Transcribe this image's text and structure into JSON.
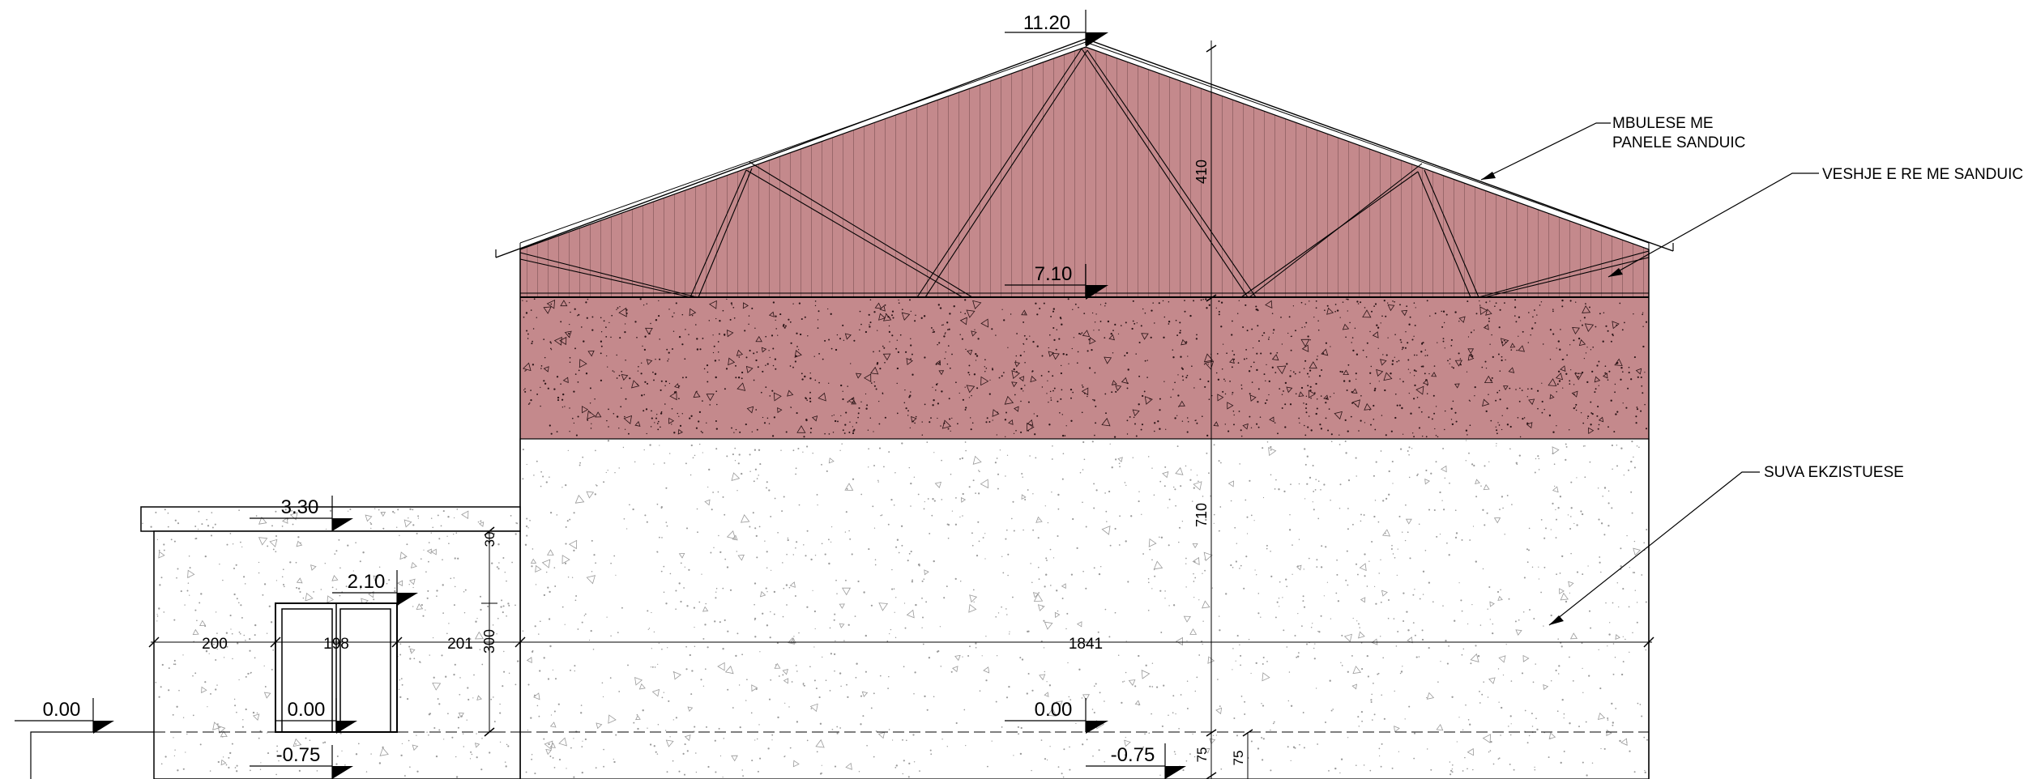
{
  "elevations": {
    "ridge": "11.20",
    "eave": "7.10",
    "annex_roof": "3.30",
    "door_head": "2.10",
    "floor_left": "0.00",
    "floor_annex": "0.00",
    "floor_main": "0.00",
    "ground_annex": "-0.75",
    "ground_main": "-0.75"
  },
  "dimensions": {
    "roof_height": "410",
    "wall_height": "710",
    "annex_slab": "30",
    "door_height": "300",
    "seg_left": "200",
    "seg_door": "198",
    "seg_right": "201",
    "main_width": "1841",
    "foot_a": "75",
    "foot_b": "75"
  },
  "annotations": {
    "roof_line1": "MBULESE ME",
    "roof_line2": "PANELE SANDUIC",
    "cladding": "VESHJE E RE ME SANDUIC",
    "existing_plaster": "SUVA EKZISTUESE"
  },
  "colors": {
    "cladding": "#c4898c",
    "line": "#000000"
  }
}
